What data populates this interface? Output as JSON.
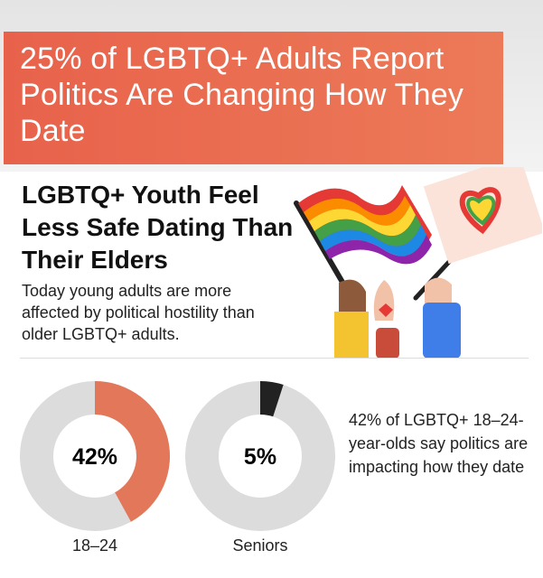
{
  "banner": {
    "title": "25% of LGBTQ+ Adults Report Politics Are Changing How They Date",
    "color": "#E8674E"
  },
  "heading": "LGBTQ+ Youth Feel Less Safe Dating Than Their Elders",
  "body": "Today young adults are more affected by political hostility than older LGBTQ+ adults.",
  "side_text": "42% of LGBTQ+ 18–24-year-olds say politics are impacting how they date",
  "illustration": {
    "icons": [
      "rainbow-flag-icon",
      "heart-sign-icon",
      "raised-hands-icon"
    ]
  },
  "chart_data": [
    {
      "type": "pie",
      "variant": "donut",
      "category": "18–24",
      "value": 42,
      "center_label": "42%",
      "color": "#E2775A",
      "track_color": "#DCDCDC"
    },
    {
      "type": "pie",
      "variant": "donut",
      "category": "Seniors",
      "value": 5,
      "center_label": "5%",
      "color": "#222222",
      "track_color": "#DCDCDC"
    }
  ]
}
